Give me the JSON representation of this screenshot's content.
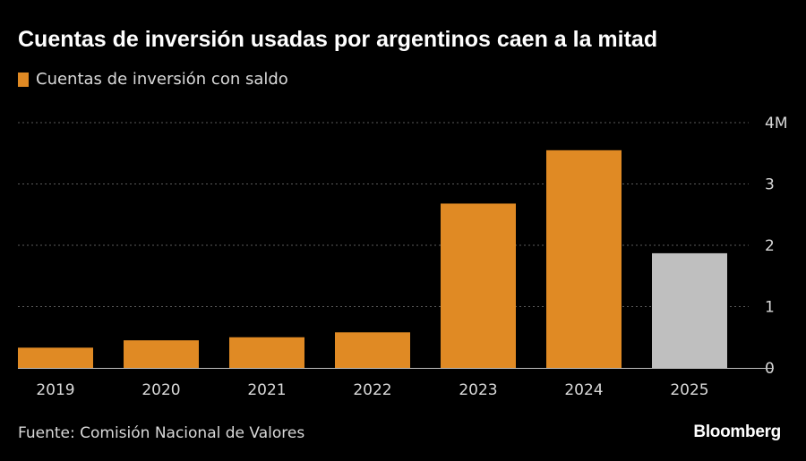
{
  "chart_data": {
    "type": "bar",
    "title": "Cuentas de inversión usadas por argentinos caen a la mitad",
    "legend": [
      {
        "label": "Cuentas de inversión con saldo",
        "color": "#E08A24"
      }
    ],
    "categories": [
      "2019",
      "2020",
      "2021",
      "2022",
      "2023",
      "2024",
      "2025"
    ],
    "values": [
      0.33,
      0.45,
      0.5,
      0.58,
      2.68,
      3.55,
      1.87
    ],
    "unit": "M",
    "ylim": [
      0,
      4
    ],
    "yticks": [
      {
        "value": 0,
        "label": "0"
      },
      {
        "value": 1,
        "label": "1"
      },
      {
        "value": 2,
        "label": "2"
      },
      {
        "value": 3,
        "label": "3"
      },
      {
        "value": 4,
        "label": "4M"
      }
    ],
    "yaxis_position": "right",
    "grid": true,
    "bar_colors": [
      "#E08A24",
      "#E08A24",
      "#E08A24",
      "#E08A24",
      "#E08A24",
      "#E08A24",
      "#BFBFBF"
    ],
    "xlabel": "",
    "ylabel": ""
  },
  "footer": {
    "source": "Fuente: Comisión Nacional de Valores",
    "brand": "Bloomberg"
  },
  "colors": {
    "background": "#000000",
    "gridline": "#5a5a5a",
    "axis": "#bfbfbf",
    "text": "#d9d9d9"
  }
}
